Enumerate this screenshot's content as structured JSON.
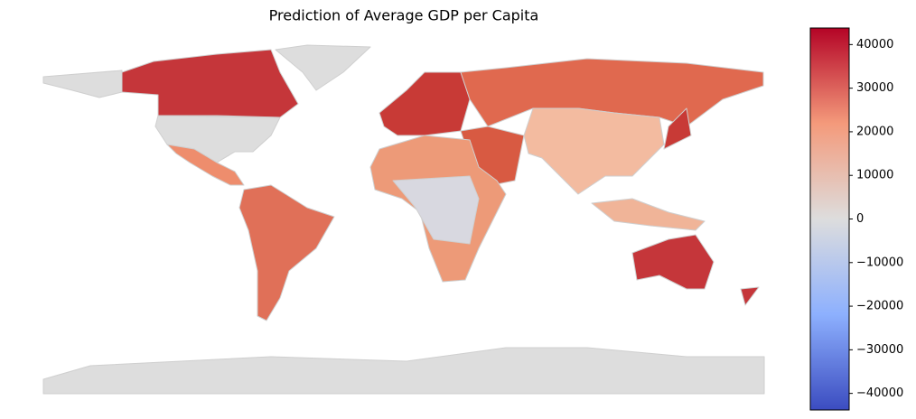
{
  "chart_data": {
    "type": "choropleth",
    "title": "Prediction of Average GDP per Capita",
    "colorscale": [
      "#3b4cc0",
      "#8db0fe",
      "#dddddd",
      "#f49a7b",
      "#b40426"
    ],
    "ylim": [
      -43800,
      43800
    ],
    "yticks": [
      40000,
      30000,
      20000,
      10000,
      0,
      {
        "value": -10000,
        "label": "−10000"
      },
      {
        "value": -20000,
        "label": "−20000"
      },
      {
        "value": -30000,
        "label": "−30000"
      },
      {
        "value": -40000,
        "label": "−40000"
      }
    ]
  }
}
